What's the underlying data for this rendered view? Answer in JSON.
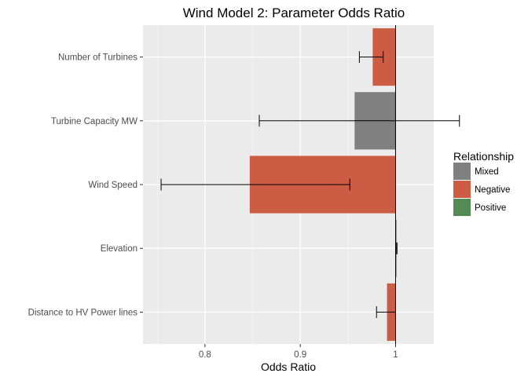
{
  "chart_data": {
    "type": "bar",
    "orientation": "horizontal",
    "title": "Wind Model 2: Parameter Odds Ratio",
    "xlabel": "Odds Ratio",
    "ylabel": "",
    "xlim": [
      0.735,
      1.04
    ],
    "xticks": [
      0.8,
      0.9,
      1
    ],
    "xtick_labels": [
      "0.8",
      "0.9",
      "1"
    ],
    "reference_line": 1,
    "baseline": 1,
    "grid": true,
    "categories": [
      "Number of Turbines",
      "Turbine Capacity MW",
      "Wind Speed",
      "Elevation",
      "Distance to HV Power lines"
    ],
    "values": [
      0.976,
      0.957,
      0.847,
      1.001,
      0.991
    ],
    "ci_low": [
      0.962,
      0.857,
      0.754,
      1.0005,
      0.98
    ],
    "ci_high": [
      0.987,
      1.067,
      0.952,
      1.0015,
      1.0
    ],
    "relationship": [
      "Negative",
      "Mixed",
      "Negative",
      "Mixed",
      "Negative"
    ],
    "legend": {
      "title": "Relationship",
      "placement": "right",
      "entries": [
        {
          "label": "Mixed",
          "color": "#808080"
        },
        {
          "label": "Negative",
          "color": "#cd5c45"
        },
        {
          "label": "Positive",
          "color": "#548b54"
        }
      ]
    }
  }
}
